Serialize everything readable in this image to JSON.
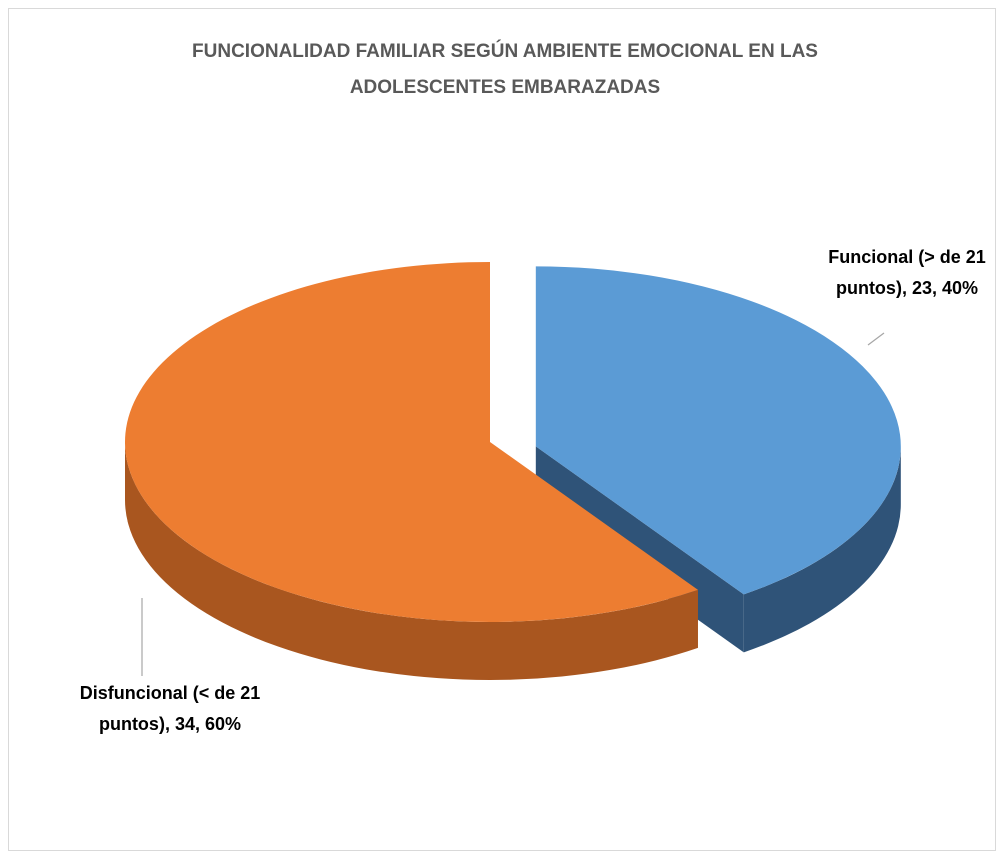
{
  "chart_data": {
    "type": "pie",
    "title": "FUNCIONALIDAD FAMILIAR SEGÚN AMBIENTE EMOCIONAL EN LAS ADOLESCENTES EMBARAZADAS",
    "categories": [
      "Funcional (> de 21 puntos)",
      "Disfuncional (< de 21 puntos)"
    ],
    "values": [
      23,
      34
    ],
    "percent_labels": [
      "40%",
      "60%"
    ],
    "label_separator": ", ",
    "colors": [
      "#5b9bd5",
      "#ed7d31"
    ],
    "side_colors": [
      "#2f5378",
      "#a9561f"
    ],
    "exploded": [
      true,
      false
    ]
  }
}
